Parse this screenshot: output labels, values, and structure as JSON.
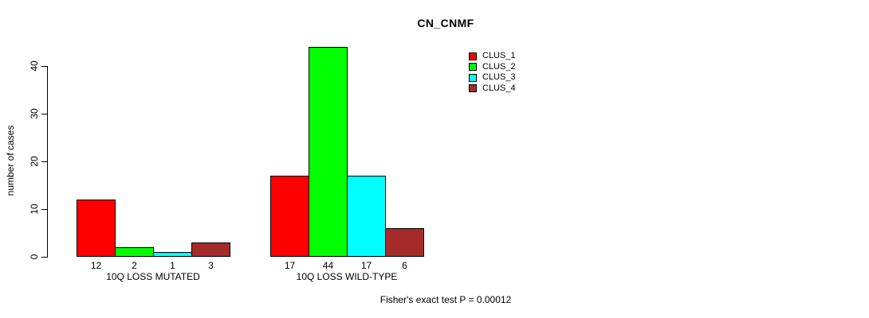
{
  "chart_data": {
    "type": "bar",
    "title": "CN_CNMF",
    "ylabel": "number of cases",
    "xlabel": "",
    "ylim": [
      0,
      44
    ],
    "yticks": [
      0,
      10,
      20,
      30,
      40
    ],
    "grid": false,
    "categories": [
      "10Q LOSS MUTATED",
      "10Q LOSS WILD-TYPE"
    ],
    "series": [
      {
        "name": "CLUS_1",
        "color": "#FF0000",
        "values": [
          12,
          17
        ]
      },
      {
        "name": "CLUS_2",
        "color": "#00FF00",
        "values": [
          2,
          44
        ]
      },
      {
        "name": "CLUS_3",
        "color": "#00FFFF",
        "values": [
          1,
          17
        ]
      },
      {
        "name": "CLUS_4",
        "color": "#A52A2A",
        "values": [
          3,
          6
        ]
      }
    ],
    "bar_value_labels": [
      [
        12,
        2,
        1,
        3
      ],
      [
        17,
        44,
        17,
        6
      ]
    ],
    "legend": {
      "position": "top-right",
      "entries": [
        "CLUS_1",
        "CLUS_2",
        "CLUS_3",
        "CLUS_4"
      ]
    },
    "annotation": "Fisher's exact test P = 0.00012"
  },
  "colors": {
    "foreground": "#000000",
    "background": "#FFFFFF"
  }
}
